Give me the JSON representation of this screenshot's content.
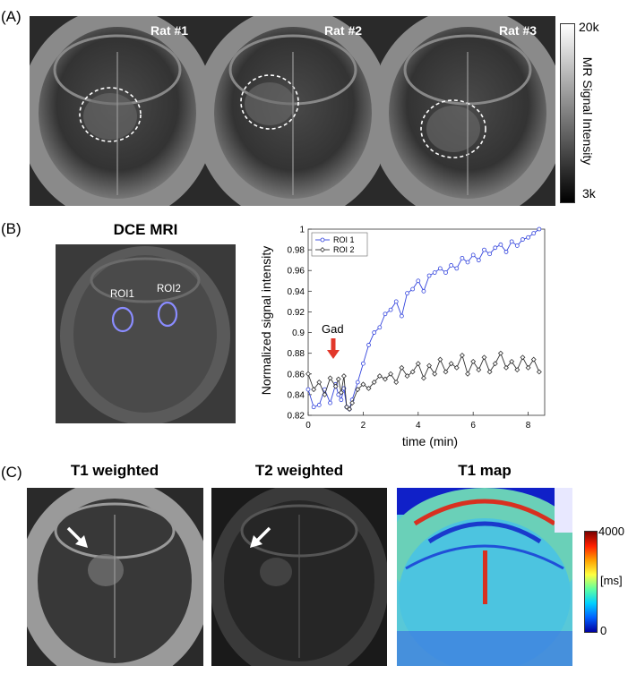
{
  "panels": {
    "a": {
      "label": "(A)",
      "rats": [
        "Rat #1",
        "Rat #2",
        "Rat #3"
      ],
      "colorbar": {
        "top_label": "20k",
        "bottom_label": "3k",
        "title": "MR Signal Intensity"
      }
    },
    "b": {
      "label": "(B)",
      "image_title": "DCE MRI",
      "roi_labels": [
        "ROI1",
        "ROI2"
      ],
      "gad_annotation": "Gad"
    },
    "c": {
      "label": "(C)",
      "titles": [
        "T1 weighted",
        "T2 weighted",
        "T1 map"
      ],
      "colorbar": {
        "top_label": "4000",
        "unit_label": "[ms]",
        "bottom_label": "0"
      }
    }
  },
  "chart_data": {
    "type": "line",
    "title": "",
    "xlabel": "time (min)",
    "ylabel": "Normalized signal intensity",
    "xlim": [
      0,
      8.6
    ],
    "ylim": [
      0.82,
      1.0
    ],
    "xticks": [
      0,
      2,
      4,
      6,
      8
    ],
    "yticks": [
      0.82,
      0.84,
      0.86,
      0.88,
      0.9,
      0.92,
      0.94,
      0.96,
      0.98,
      1
    ],
    "legend_position": "top-left",
    "series": [
      {
        "name": "ROI 1",
        "color": "#3344dd",
        "marker": "circle",
        "x": [
          0.0,
          0.2,
          0.4,
          0.6,
          0.8,
          1.0,
          1.1,
          1.2,
          1.3,
          1.4,
          1.5,
          1.6,
          1.8,
          2.0,
          2.2,
          2.4,
          2.6,
          2.8,
          3.0,
          3.2,
          3.4,
          3.6,
          3.8,
          4.0,
          4.2,
          4.4,
          4.6,
          4.8,
          5.0,
          5.2,
          5.4,
          5.6,
          5.8,
          6.0,
          6.2,
          6.4,
          6.6,
          6.8,
          7.0,
          7.2,
          7.4,
          7.6,
          7.8,
          8.0,
          8.2,
          8.4
        ],
        "y": [
          0.845,
          0.828,
          0.83,
          0.845,
          0.832,
          0.85,
          0.84,
          0.835,
          0.846,
          0.828,
          0.826,
          0.835,
          0.852,
          0.87,
          0.888,
          0.9,
          0.905,
          0.918,
          0.922,
          0.93,
          0.916,
          0.938,
          0.942,
          0.95,
          0.94,
          0.955,
          0.958,
          0.962,
          0.958,
          0.965,
          0.962,
          0.972,
          0.968,
          0.975,
          0.97,
          0.98,
          0.976,
          0.982,
          0.985,
          0.978,
          0.988,
          0.984,
          0.99,
          0.992,
          0.996,
          1.0
        ]
      },
      {
        "name": "ROI 2",
        "color": "#333333",
        "marker": "diamond",
        "x": [
          0.0,
          0.2,
          0.4,
          0.6,
          0.8,
          1.0,
          1.1,
          1.2,
          1.3,
          1.4,
          1.5,
          1.6,
          1.8,
          2.0,
          2.2,
          2.4,
          2.6,
          2.8,
          3.0,
          3.2,
          3.4,
          3.6,
          3.8,
          4.0,
          4.2,
          4.4,
          4.6,
          4.8,
          5.0,
          5.2,
          5.4,
          5.6,
          5.8,
          6.0,
          6.2,
          6.4,
          6.6,
          6.8,
          7.0,
          7.2,
          7.4,
          7.6,
          7.8,
          8.0,
          8.2,
          8.4
        ],
        "y": [
          0.86,
          0.845,
          0.852,
          0.84,
          0.856,
          0.848,
          0.855,
          0.842,
          0.858,
          0.828,
          0.826,
          0.832,
          0.845,
          0.85,
          0.846,
          0.852,
          0.858,
          0.855,
          0.86,
          0.852,
          0.866,
          0.858,
          0.862,
          0.87,
          0.856,
          0.868,
          0.86,
          0.874,
          0.862,
          0.87,
          0.866,
          0.878,
          0.86,
          0.872,
          0.864,
          0.876,
          0.862,
          0.87,
          0.88,
          0.866,
          0.872,
          0.864,
          0.876,
          0.866,
          0.874,
          0.862
        ]
      }
    ]
  }
}
